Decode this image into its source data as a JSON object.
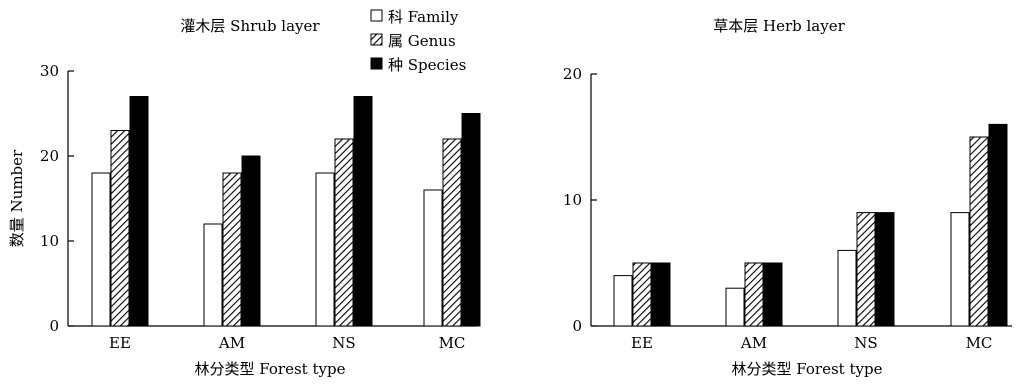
{
  "chart_data": [
    {
      "type": "bar",
      "title": "灌木层 Shrub layer",
      "xlabel": "林分类型 Forest type",
      "ylabel": "数量 Number",
      "categories": [
        "EE",
        "AM",
        "NS",
        "MC"
      ],
      "ylim": [
        0,
        30
      ],
      "yticks": [
        0,
        10,
        20,
        30
      ],
      "series": [
        {
          "name": "科 Family",
          "values": [
            18,
            12,
            18,
            16
          ]
        },
        {
          "name": "属 Genus",
          "values": [
            23,
            18,
            22,
            22
          ]
        },
        {
          "name": "种 Species",
          "values": [
            27,
            20,
            27,
            25
          ]
        }
      ],
      "legend": "top-right"
    },
    {
      "type": "bar",
      "title": "草本层 Herb layer",
      "xlabel": "林分类型 Forest type",
      "ylabel": "",
      "categories": [
        "EE",
        "AM",
        "NS",
        "MC"
      ],
      "ylim": [
        0,
        20
      ],
      "yticks": [
        0,
        10,
        20
      ],
      "series": [
        {
          "name": "科 Family",
          "values": [
            4,
            3,
            6,
            9
          ]
        },
        {
          "name": "属 Genus",
          "values": [
            5,
            5,
            9,
            15
          ]
        },
        {
          "name": "种 Species",
          "values": [
            5,
            5,
            9,
            16
          ]
        }
      ]
    }
  ],
  "series_fills": [
    "white",
    "hatch",
    "black"
  ]
}
